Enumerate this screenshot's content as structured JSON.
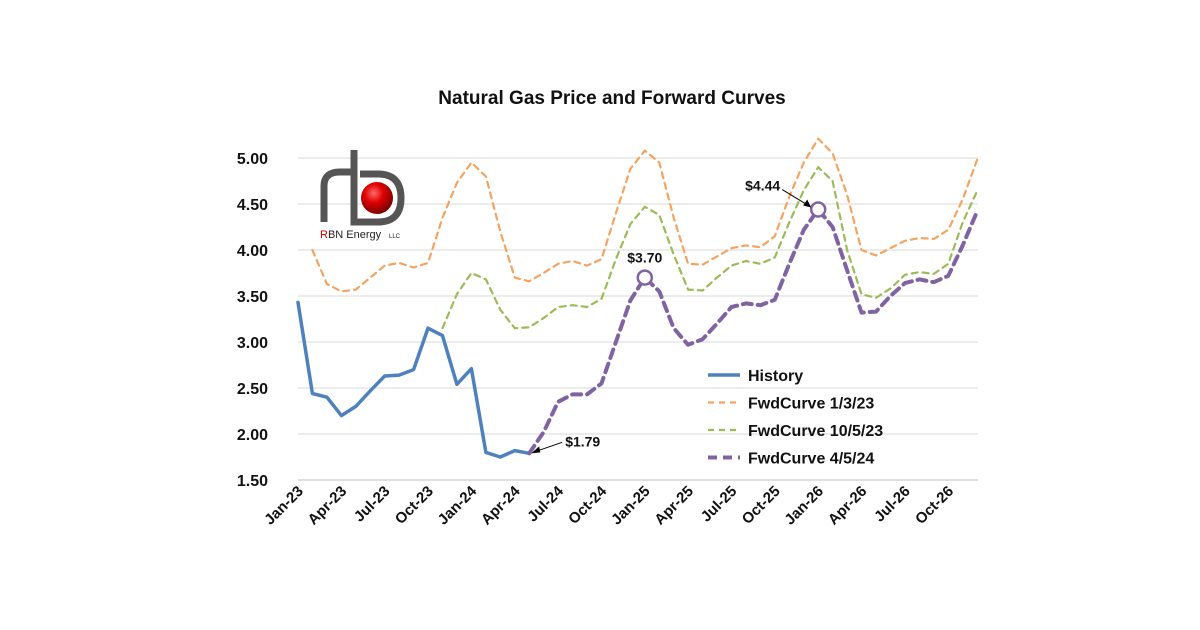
{
  "logo": {
    "text": "RBN Energy",
    "suffix": "LLC"
  },
  "chart_data": {
    "type": "line",
    "title": "Natural Gas Price and Forward Curves",
    "xlabel": "",
    "ylabel": "",
    "ylim": [
      1.5,
      5.0
    ],
    "yticks": [
      "1.50",
      "2.00",
      "2.50",
      "3.00",
      "3.50",
      "4.00",
      "4.50",
      "5.00"
    ],
    "x": [
      "2023-01",
      "2023-02",
      "2023-03",
      "2023-04",
      "2023-05",
      "2023-06",
      "2023-07",
      "2023-08",
      "2023-09",
      "2023-10",
      "2023-11",
      "2023-12",
      "2024-01",
      "2024-02",
      "2024-03",
      "2024-04",
      "2024-05",
      "2024-06",
      "2024-07",
      "2024-08",
      "2024-09",
      "2024-10",
      "2024-11",
      "2024-12",
      "2025-01",
      "2025-02",
      "2025-03",
      "2025-04",
      "2025-05",
      "2025-06",
      "2025-07",
      "2025-08",
      "2025-09",
      "2025-10",
      "2025-11",
      "2025-12",
      "2026-01",
      "2026-02",
      "2026-03",
      "2026-04",
      "2026-05",
      "2026-06",
      "2026-07",
      "2026-08",
      "2026-09",
      "2026-10",
      "2026-11",
      "2026-12"
    ],
    "xtick_labels": [
      "Jan-23",
      "Apr-23",
      "Jul-23",
      "Oct-23",
      "Jan-24",
      "Apr-24",
      "Jul-24",
      "Oct-24",
      "Jan-25",
      "Apr-25",
      "Jul-25",
      "Oct-25",
      "Jan-26",
      "Apr-26",
      "Jul-26",
      "Oct-26"
    ],
    "series": [
      {
        "name": "History",
        "color": "#4f81bd",
        "style": "solid",
        "x": [
          "2023-01",
          "2023-02",
          "2023-03",
          "2023-04",
          "2023-05",
          "2023-06",
          "2023-07",
          "2023-08",
          "2023-09",
          "2023-10",
          "2023-11",
          "2023-12",
          "2024-01",
          "2024-02",
          "2024-03",
          "2024-04",
          "2024-05"
        ],
        "values": [
          3.43,
          2.44,
          2.4,
          2.2,
          2.3,
          2.47,
          2.63,
          2.64,
          2.7,
          3.15,
          3.07,
          2.54,
          2.71,
          1.8,
          1.75,
          1.82,
          1.79
        ]
      },
      {
        "name": "FwdCurve 1/3/23",
        "color": "#f4a460",
        "style": "dashed",
        "x": [
          "2023-02",
          "2023-03",
          "2023-04",
          "2023-05",
          "2023-06",
          "2023-07",
          "2023-08",
          "2023-09",
          "2023-10",
          "2023-11",
          "2023-12",
          "2024-01",
          "2024-02",
          "2024-03",
          "2024-04",
          "2024-05",
          "2024-06",
          "2024-07",
          "2024-08",
          "2024-09",
          "2024-10",
          "2024-11",
          "2024-12",
          "2025-01",
          "2025-02",
          "2025-03",
          "2025-04",
          "2025-05",
          "2025-06",
          "2025-07",
          "2025-08",
          "2025-09",
          "2025-10",
          "2025-11",
          "2025-12",
          "2026-01",
          "2026-02",
          "2026-03",
          "2026-04",
          "2026-05",
          "2026-06",
          "2026-07",
          "2026-08",
          "2026-09",
          "2026-10",
          "2026-11",
          "2026-12"
        ],
        "values": [
          4.0,
          3.63,
          3.55,
          3.57,
          3.7,
          3.83,
          3.86,
          3.81,
          3.86,
          4.35,
          4.73,
          4.95,
          4.8,
          4.2,
          3.7,
          3.66,
          3.75,
          3.85,
          3.88,
          3.83,
          3.9,
          4.4,
          4.88,
          5.08,
          4.95,
          4.35,
          3.85,
          3.84,
          3.93,
          4.02,
          4.05,
          4.03,
          4.15,
          4.58,
          4.95,
          5.21,
          5.05,
          4.6,
          4.0,
          3.94,
          4.02,
          4.1,
          4.13,
          4.12,
          4.22,
          4.55,
          4.98
        ]
      },
      {
        "name": "FwdCurve 10/5/23",
        "color": "#9bbb59",
        "style": "dashed",
        "x": [
          "2023-11",
          "2023-12",
          "2024-01",
          "2024-02",
          "2024-03",
          "2024-04",
          "2024-05",
          "2024-06",
          "2024-07",
          "2024-08",
          "2024-09",
          "2024-10",
          "2024-11",
          "2024-12",
          "2025-01",
          "2025-02",
          "2025-03",
          "2025-04",
          "2025-05",
          "2025-06",
          "2025-07",
          "2025-08",
          "2025-09",
          "2025-10",
          "2025-11",
          "2025-12",
          "2026-01",
          "2026-02",
          "2026-03",
          "2026-04",
          "2026-05",
          "2026-06",
          "2026-07",
          "2026-08",
          "2026-09",
          "2026-10",
          "2026-11",
          "2026-12"
        ],
        "values": [
          3.15,
          3.52,
          3.75,
          3.68,
          3.35,
          3.15,
          3.16,
          3.26,
          3.38,
          3.4,
          3.38,
          3.47,
          3.9,
          4.28,
          4.47,
          4.38,
          3.95,
          3.57,
          3.56,
          3.7,
          3.83,
          3.88,
          3.85,
          3.92,
          4.3,
          4.65,
          4.9,
          4.75,
          4.0,
          3.52,
          3.48,
          3.58,
          3.73,
          3.76,
          3.74,
          3.85,
          4.3,
          4.64
        ]
      },
      {
        "name": "FwdCurve 4/5/24",
        "color": "#8064a2",
        "style": "dashed",
        "x": [
          "2024-05",
          "2024-06",
          "2024-07",
          "2024-08",
          "2024-09",
          "2024-10",
          "2024-11",
          "2024-12",
          "2025-01",
          "2025-02",
          "2025-03",
          "2025-04",
          "2025-05",
          "2025-06",
          "2025-07",
          "2025-08",
          "2025-09",
          "2025-10",
          "2025-11",
          "2025-12",
          "2026-01",
          "2026-02",
          "2026-03",
          "2026-04",
          "2026-05",
          "2026-06",
          "2026-07",
          "2026-08",
          "2026-09",
          "2026-10",
          "2026-11",
          "2026-12"
        ],
        "values": [
          1.79,
          2.02,
          2.35,
          2.43,
          2.43,
          2.55,
          3.0,
          3.45,
          3.7,
          3.55,
          3.15,
          2.97,
          3.03,
          3.2,
          3.38,
          3.42,
          3.4,
          3.46,
          3.85,
          4.22,
          4.44,
          4.25,
          3.78,
          3.32,
          3.33,
          3.5,
          3.64,
          3.68,
          3.65,
          3.72,
          4.05,
          4.42
        ]
      }
    ],
    "annotations": [
      {
        "label": "$3.70",
        "x": "2025-01",
        "y": 3.7
      },
      {
        "label": "$4.44",
        "x": "2026-01",
        "y": 4.44
      },
      {
        "label": "$1.79",
        "x": "2024-05",
        "y": 1.79
      }
    ],
    "legend_placement": "right-middle",
    "grid": "horizontal"
  }
}
